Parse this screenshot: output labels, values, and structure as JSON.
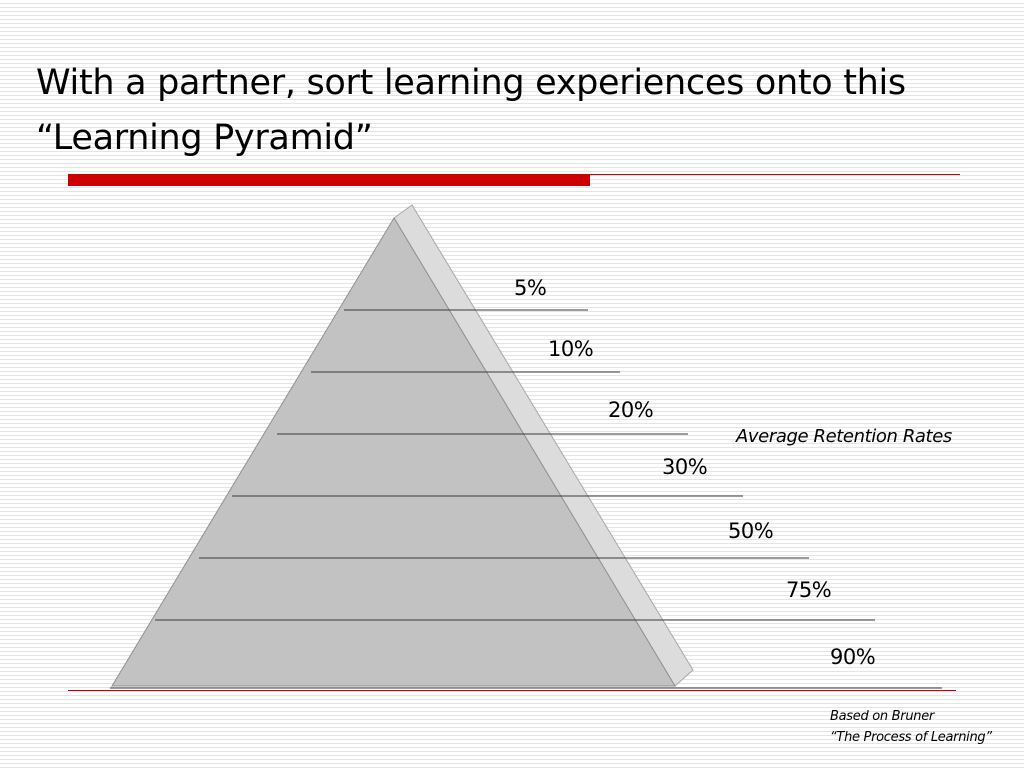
{
  "slide": {
    "title_line1": "With a partner, sort learning experiences onto this",
    "title_line2": "“Learning Pyramid”",
    "accent_color": "#cc0000"
  },
  "pyramid": {
    "fill_color": "#c2c2c2",
    "side_color": "#dcdcdc",
    "levels": [
      {
        "label": "5%"
      },
      {
        "label": "10%"
      },
      {
        "label": "20%"
      },
      {
        "label": "30%"
      },
      {
        "label": "50%"
      },
      {
        "label": "75%"
      },
      {
        "label": "90%"
      }
    ],
    "caption": "Average Retention Rates"
  },
  "source": {
    "line1": "Based on Bruner",
    "line2": "“The Process of Learning”"
  }
}
